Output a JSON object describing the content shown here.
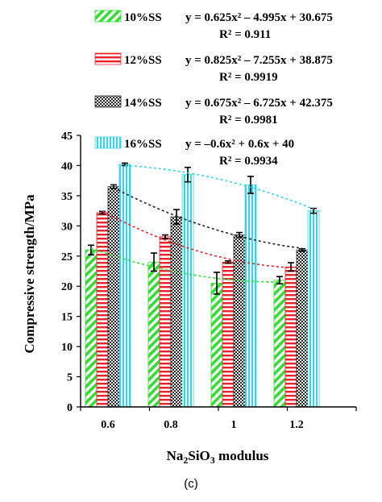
{
  "chart_data": {
    "type": "bar",
    "caption": "(c)",
    "xlabel": "Na2SiO3 modulus",
    "xlabel_parts": {
      "base": "Na",
      "sub1": "2",
      "mid": "SiO",
      "sub2": "3",
      "tail": " modulus"
    },
    "ylabel": "Compressive strength/MPa",
    "ylim": [
      0,
      45
    ],
    "yticks": [
      "0",
      "5",
      "10",
      "15",
      "20",
      "25",
      "30",
      "35",
      "40",
      "45"
    ],
    "categories": [
      "0.6",
      "0.8",
      "1",
      "1.2"
    ],
    "grid": false,
    "legend_position": "top",
    "series": [
      {
        "name": "10%SS",
        "values": [
          26.0,
          24.0,
          20.5,
          21.0
        ],
        "errors": [
          0.8,
          1.5,
          1.8,
          0.6
        ],
        "color": "#33dd33",
        "pattern": "diagonal-stripes",
        "fit_equation": "y = 0.625x² – 4.995x + 30.675",
        "fit_r2": "R² = 0.911",
        "fit_coeffs": [
          0.625,
          -4.995,
          30.675
        ],
        "trend_color": "#33dd33"
      },
      {
        "name": "12%SS",
        "values": [
          32.2,
          28.2,
          24.0,
          23.2
        ],
        "errors": [
          0.2,
          0.3,
          0.2,
          0.7
        ],
        "color": "#e8232a",
        "pattern": "horizontal-stripes",
        "fit_equation": "y = 0.825x² – 7.255x + 38.875",
        "fit_r2": "R² = 0.9919",
        "fit_coeffs": [
          0.825,
          -7.255,
          38.875
        ],
        "trend_color": "#e8232a"
      },
      {
        "name": "14%SS",
        "values": [
          36.5,
          31.5,
          28.5,
          26.0
        ],
        "errors": [
          0.3,
          1.2,
          0.4,
          0.2
        ],
        "color": "#222222",
        "pattern": "checker",
        "fit_equation": "y = 0.675x² – 6.725x + 42.375",
        "fit_r2": "R² = 0.9981",
        "fit_coeffs": [
          0.675,
          -6.725,
          42.375
        ],
        "trend_color": "#222222"
      },
      {
        "name": "16%SS",
        "values": [
          40.2,
          38.5,
          36.8,
          32.5
        ],
        "errors": [
          0.2,
          1.2,
          1.4,
          0.4
        ],
        "color": "#33d6e6",
        "pattern": "vertical-stripes",
        "fit_equation": "y = –0.6x² + 0.6x + 40",
        "fit_r2": "R² = 0.9934",
        "fit_coeffs": [
          -0.6,
          0.6,
          40
        ],
        "trend_color": "#33d6e6"
      }
    ]
  }
}
